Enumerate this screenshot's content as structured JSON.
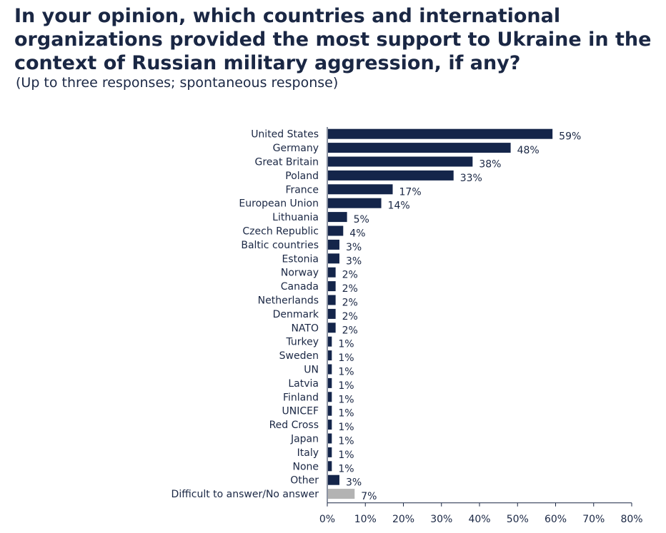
{
  "colors": {
    "bar": "#14254a",
    "bar_highlight": "#b3b3b3",
    "text": "#1a2744",
    "axis": "#1a2744"
  },
  "chart_data": {
    "type": "bar",
    "orientation": "horizontal",
    "title": "In your opinion, which countries and international organizations provided the most support to Ukraine in the context of Russian military aggression, if any?",
    "subtitle": "(Up to three responses; spontaneous response)",
    "categories": [
      "United States",
      "Germany",
      "Great Britain",
      "Poland",
      "France",
      "European Union",
      "Lithuania",
      "Czech Republic",
      "Baltic countries",
      "Estonia",
      "Norway",
      "Canada",
      "Netherlands",
      "Denmark",
      "NATO",
      "Turkey",
      "Sweden",
      "UN",
      "Latvia",
      "Finland",
      "UNICEF",
      "Red Cross",
      "Japan",
      "Italy",
      "None",
      "Other",
      "Difficult to answer/No answer"
    ],
    "values": [
      59,
      48,
      38,
      33,
      17,
      14,
      5,
      4,
      3,
      3,
      2,
      2,
      2,
      2,
      2,
      1,
      1,
      1,
      1,
      1,
      1,
      1,
      1,
      1,
      1,
      3,
      7
    ],
    "labels": [
      "59%",
      "48%",
      "38%",
      "33%",
      "17%",
      "14%",
      "5%",
      "4%",
      "3%",
      "3%",
      "2%",
      "2%",
      "2%",
      "2%",
      "2%",
      "1%",
      "1%",
      "1%",
      "1%",
      "1%",
      "1%",
      "1%",
      "1%",
      "1%",
      "1%",
      "3%",
      "7%"
    ],
    "highlight_index": 26,
    "xlim": [
      0,
      80
    ],
    "xticks": [
      "0%",
      "10%",
      "20%",
      "30%",
      "40%",
      "50%",
      "60%",
      "70%",
      "80%"
    ],
    "xlabel": "",
    "ylabel": "",
    "grid": false,
    "legend": "none"
  }
}
